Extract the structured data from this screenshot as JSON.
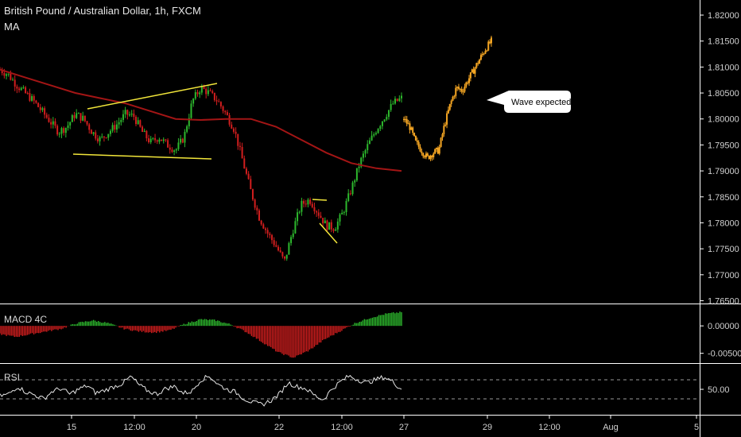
{
  "header": {
    "title": "British Pound / Australian Dollar, 1h, FXCM",
    "indicator": "MA"
  },
  "panes": {
    "macd_label": "MACD 4C",
    "rsi_label": "RSI"
  },
  "annotation": {
    "callout": "Wave expected"
  },
  "colors": {
    "background": "#000000",
    "bull_candle": "#2db82d",
    "bear_candle": "#d21e1e",
    "moving_average": "#a31515",
    "trendline": "#f2e63a",
    "projection": "#f5a623",
    "rsi_line": "#e6e6e6",
    "divider": "#ffffff"
  },
  "chart_data": [
    {
      "type": "candlestick",
      "title": "British Pound / Australian Dollar, 1h, FXCM",
      "price_axis": {
        "ticks": [
          "1.82000",
          "1.81500",
          "1.81000",
          "1.80500",
          "1.80000",
          "1.79500",
          "1.79000",
          "1.78500",
          "1.78000",
          "1.77500",
          "1.77000",
          "1.76500"
        ],
        "range": [
          1.765,
          1.82
        ]
      },
      "x_ticks": [
        "15",
        "12:00",
        "20",
        "22",
        "12:00",
        "27",
        "29",
        "12:00",
        "Aug",
        "5"
      ],
      "price_path": [
        1.8095,
        1.8085,
        1.8065,
        1.805,
        1.8035,
        1.8015,
        1.7995,
        1.7975,
        1.7985,
        1.801,
        1.8,
        1.7975,
        1.796,
        1.7975,
        1.799,
        1.801,
        1.8005,
        1.7975,
        1.7955,
        1.7965,
        1.795,
        1.794,
        1.7965,
        1.8035,
        1.806,
        1.805,
        1.8035,
        1.801,
        1.798,
        1.792,
        1.786,
        1.781,
        1.778,
        1.7755,
        1.7725,
        1.7785,
        1.7835,
        1.7845,
        1.782,
        1.7795,
        1.779,
        1.782,
        1.7865,
        1.7915,
        1.795,
        1.798,
        1.8005,
        1.803,
        1.804
      ],
      "projection_path": [
        1.8,
        1.7985,
        1.7955,
        1.794,
        1.7925,
        1.7935,
        1.794,
        1.799,
        1.803,
        1.806,
        1.8055,
        1.8075,
        1.8095,
        1.8115,
        1.8135,
        1.815
      ],
      "series": [
        {
          "name": "MA",
          "values": [
            1.8095,
            1.808,
            1.8065,
            1.805,
            1.804,
            1.803,
            1.8015,
            1.8,
            1.7998,
            1.8,
            1.8,
            1.7985,
            1.796,
            1.7935,
            1.7915,
            1.7905,
            1.79
          ]
        }
      ],
      "annotations": [
        "Wave expected"
      ]
    },
    {
      "type": "bar",
      "title": "MACD 4C",
      "y_ticks": [
        "0.00000",
        "-0.00500"
      ],
      "ylim": [
        -0.0065,
        0.0035
      ],
      "values": [
        -0.0015,
        -0.002,
        -0.0015,
        -0.001,
        -0.0005,
        0.0005,
        0.001,
        0.0005,
        -0.0005,
        -0.001,
        -0.0012,
        -0.0008,
        0.0004,
        0.0012,
        0.001,
        0.0002,
        -0.0012,
        -0.003,
        -0.0048,
        -0.0058,
        -0.0045,
        -0.0025,
        -0.001,
        0.0005,
        0.0015,
        0.0022,
        0.0025
      ]
    },
    {
      "type": "line",
      "title": "RSI",
      "y_ticks": [
        "50.00"
      ],
      "ylim": [
        0,
        100
      ],
      "values": [
        36,
        40,
        56,
        44,
        38,
        30,
        46,
        52,
        40,
        50,
        58,
        42,
        48,
        55,
        62,
        77,
        58,
        46,
        40,
        52,
        56,
        42,
        46,
        70,
        78,
        60,
        50,
        44,
        30,
        22,
        18,
        26,
        40,
        64,
        56,
        52,
        38,
        28,
        50,
        66,
        78,
        70,
        64,
        70,
        76,
        66,
        50
      ]
    }
  ]
}
